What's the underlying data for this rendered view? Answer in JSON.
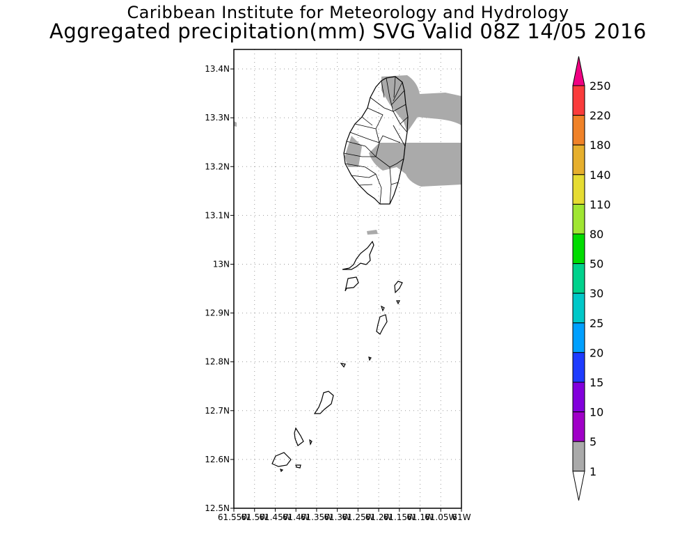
{
  "header": {
    "line1": "Caribbean Institute for Meteorology and Hydrology",
    "line2": "Aggregated precipitation(mm) SVG Valid 08Z 14/05 2016"
  },
  "map": {
    "lat_ticks": [
      "13.4N",
      "13.3N",
      "13.2N",
      "13.1N",
      "13N",
      "12.9N",
      "12.8N",
      "12.7N",
      "12.6N",
      "12.5N"
    ],
    "lon_ticks": [
      "61.55W",
      "61.5W",
      "61.45W",
      "61.4W",
      "61.35W",
      "61.3W",
      "61.25W",
      "61.2W",
      "61.15W",
      "61.1W",
      "61.05W",
      "61W"
    ],
    "lat_range": [
      12.5,
      13.44
    ],
    "lon_range": [
      -61.55,
      -61.0
    ],
    "grid": true,
    "precip_shaded_class": "1-5 mm",
    "shade_color": "#aaaaaa"
  },
  "colorbar": {
    "labels": [
      "1",
      "5",
      "10",
      "15",
      "20",
      "25",
      "30",
      "50",
      "80",
      "110",
      "140",
      "180",
      "220",
      "250"
    ],
    "colors": [
      "#aaaaaa",
      "#a000c8",
      "#8200dc",
      "#1e3cff",
      "#00a0ff",
      "#00c8c8",
      "#00d28c",
      "#00dc00",
      "#a0e632",
      "#e6dc32",
      "#e6af2d",
      "#f08228",
      "#fa3c3c",
      "#f00082"
    ]
  }
}
